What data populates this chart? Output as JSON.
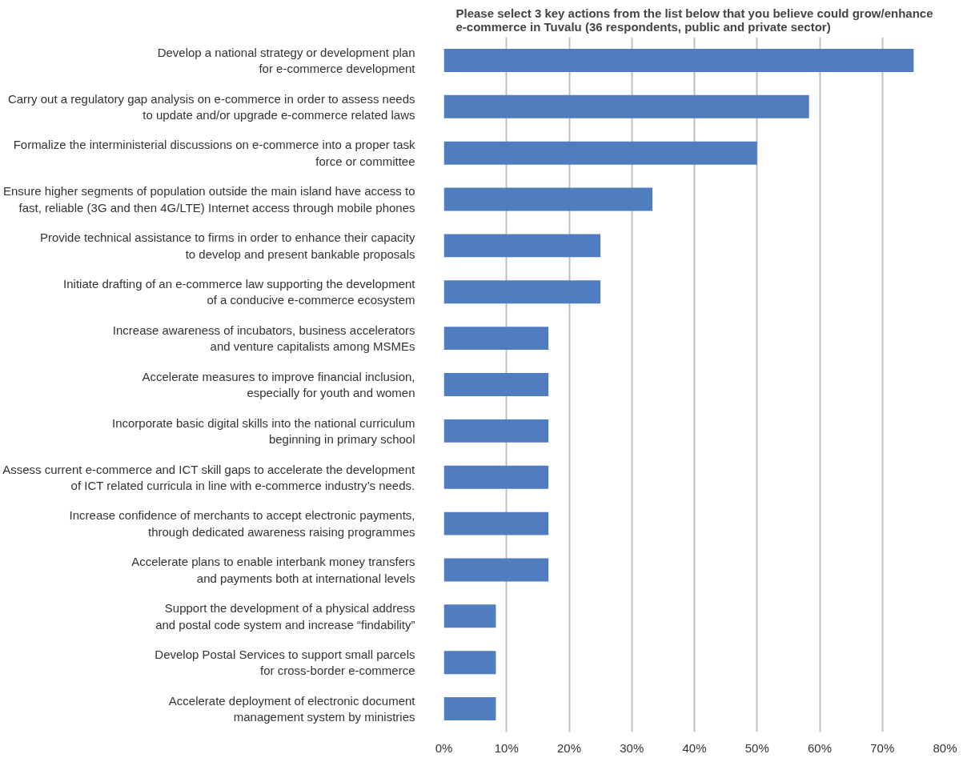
{
  "chart_data": {
    "type": "bar",
    "orientation": "horizontal",
    "title": "Please select 3 key actions from the list below that you believe could grow/enhance\ne-commerce in Tuvalu (36 respondents, public and private sector)",
    "categories": [
      "Develop a national strategy or development plan\nfor e-commerce development",
      "Carry out a regulatory gap analysis on e-commerce in order to assess needs\nto update and/or upgrade e-commerce related laws",
      "Formalize the interministerial discussions on e-commerce into a proper task\nforce or committee",
      "Ensure higher segments of population outside the main island have access to\nfast, reliable (3G and then 4G/LTE) Internet access through mobile phones",
      "Provide technical assistance to firms in order to enhance their capacity\nto develop and present bankable proposals",
      "Initiate drafting of an e-commerce law supporting the development\nof a conducive e-commerce ecosystem",
      "Increase awareness of incubators, business accelerators\nand venture capitalists among MSMEs",
      "Accelerate measures to improve financial inclusion,\nespecially for youth and women",
      "Incorporate basic digital skills into the national curriculum\nbeginning in primary school",
      "Assess current e-commerce and ICT skill gaps to accelerate the development\nof ICT related curricula in line with e-commerce industry’s needs.",
      "Increase confidence of merchants to accept electronic payments,\nthrough dedicated awareness raising programmes",
      "Accelerate plans to enable interbank money transfers\nand payments both at international levels",
      "Support the development of a physical address\nand postal code system and increase “findability”",
      "Develop Postal Services to support small parcels\nfor cross-border e-commerce",
      "Accelerate deployment of electronic document\nmanagement system by ministries"
    ],
    "values": [
      75,
      58.3,
      50,
      33.3,
      25,
      25,
      16.7,
      16.7,
      16.7,
      16.7,
      16.7,
      16.7,
      8.3,
      8.3,
      8.3
    ],
    "color": "#4f7dbf",
    "xlim": [
      0,
      80
    ],
    "xticks": [
      {
        "value": 0,
        "label": "0%"
      },
      {
        "value": 10,
        "label": "10%"
      },
      {
        "value": 20,
        "label": "20%"
      },
      {
        "value": 30,
        "label": "30%"
      },
      {
        "value": 40,
        "label": "40%"
      },
      {
        "value": 50,
        "label": "50%"
      },
      {
        "value": 60,
        "label": "60%"
      },
      {
        "value": 70,
        "label": "70%"
      },
      {
        "value": 80,
        "label": "80%"
      }
    ],
    "grid": "x"
  }
}
